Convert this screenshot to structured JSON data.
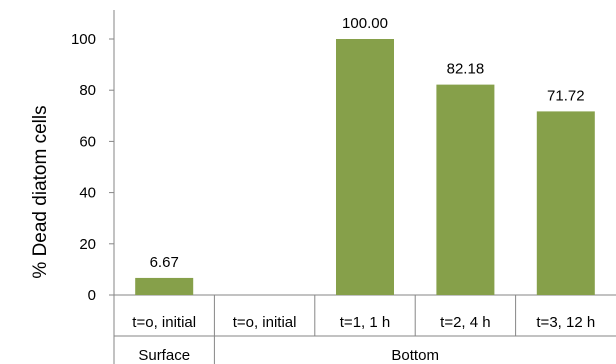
{
  "chart_data": {
    "type": "bar",
    "ylabel": "% Dead diatom cells",
    "xlabel": "",
    "title": "",
    "ylim": [
      0,
      100
    ],
    "yticks": [
      0,
      20,
      40,
      60,
      80,
      100
    ],
    "grid": false,
    "legend": "none",
    "categories": [
      "t=o, initial",
      "t=o, initial",
      "t=1, 1 h",
      "t=2, 4 h",
      "t=3, 12 h"
    ],
    "groups": [
      {
        "label": "Surface",
        "span": 1
      },
      {
        "label": "Bottom",
        "span": 4
      }
    ],
    "values": [
      6.67,
      null,
      100.0,
      82.18,
      71.72
    ],
    "data_labels": [
      "6.67",
      "",
      "100.00",
      "82.18",
      "71.72"
    ],
    "bar_color": "#86a04a"
  }
}
